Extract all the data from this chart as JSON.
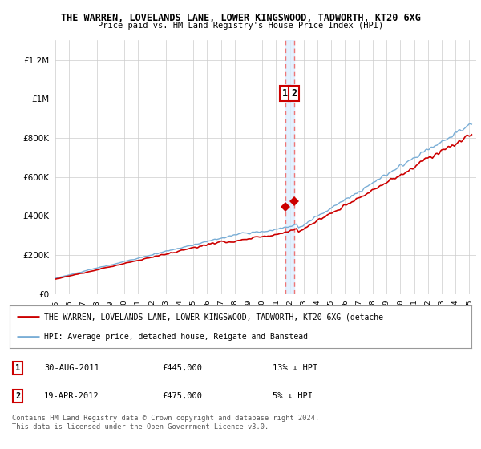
{
  "title1": "THE WARREN, LOVELANDS LANE, LOWER KINGSWOOD, TADWORTH, KT20 6XG",
  "title2": "Price paid vs. HM Land Registry's House Price Index (HPI)",
  "xlim_start": 1995.0,
  "xlim_end": 2025.5,
  "ylim": [
    0,
    1300000
  ],
  "yticks": [
    0,
    200000,
    400000,
    600000,
    800000,
    1000000,
    1200000
  ],
  "ytick_labels": [
    "£0",
    "£200K",
    "£400K",
    "£600K",
    "£800K",
    "£1M",
    "£1.2M"
  ],
  "red_color": "#cc0000",
  "blue_color": "#7aaed6",
  "dashed_color": "#ee7777",
  "band_color": "#ddeeff",
  "sale1_date": 2011.66,
  "sale1_price": 445000,
  "sale2_date": 2012.3,
  "sale2_price": 475000,
  "legend_text_red": "THE WARREN, LOVELANDS LANE, LOWER KINGSWOOD, TADWORTH, KT20 6XG (detache",
  "legend_text_blue": "HPI: Average price, detached house, Reigate and Banstead",
  "note1_date": "30-AUG-2011",
  "note1_price": "£445,000",
  "note1_info": "13% ↓ HPI",
  "note2_date": "19-APR-2012",
  "note2_price": "£475,000",
  "note2_info": "5% ↓ HPI",
  "footnote": "Contains HM Land Registry data © Crown copyright and database right 2024.\nThis data is licensed under the Open Government Licence v3.0."
}
